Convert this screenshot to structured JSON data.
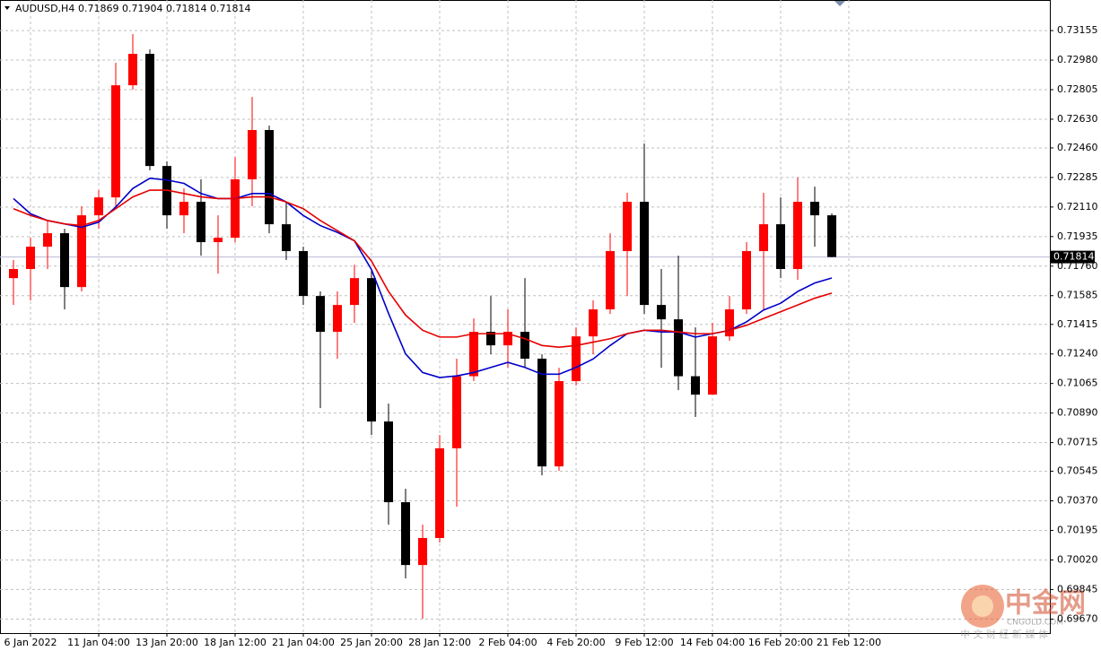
{
  "chart_data": {
    "type": "candlestick",
    "header": {
      "symbol": "AUDUSD,H4",
      "values": [
        0.71869,
        0.71904,
        0.71814,
        0.71814
      ]
    },
    "categories": [
      null,
      "6 Jan 2022",
      null,
      null,
      null,
      "11 Jan 04:00",
      null,
      null,
      null,
      "13 Jan 20:00",
      null,
      null,
      null,
      "18 Jan 12:00",
      null,
      null,
      null,
      "21 Jan 04:00",
      null,
      null,
      null,
      "25 Jan 20:00",
      null,
      null,
      null,
      "28 Jan 12:00",
      null,
      null,
      null,
      "2 Feb 04:00",
      null,
      null,
      null,
      "4 Feb 20:00",
      null,
      null,
      null,
      "9 Feb 12:00",
      null,
      null,
      null,
      "14 Feb 04:00",
      null,
      null,
      null,
      "16 Feb 20:00",
      null,
      null,
      null,
      "21 Feb 12:00"
    ],
    "open": [
      0.71689,
      0.71743,
      0.71875,
      0.71955,
      0.71636,
      0.72061,
      0.72167,
      0.72831,
      0.73017,
      0.72353,
      0.72061,
      0.72141,
      0.71902,
      0.71928,
      0.72274,
      0.72566,
      0.72008,
      0.71849,
      0.71583,
      0.71371,
      0.7153,
      0.71689,
      0.7084,
      0.70362,
      0.6999,
      0.7015,
      0.70681,
      0.71108,
      0.71371,
      0.71291,
      0.71371,
      0.71212,
      0.70574,
      0.71079,
      0.71344,
      0.71504,
      0.71849,
      0.72141,
      0.7153,
      0.71445,
      0.71108,
      0.70999,
      0.71344,
      0.71504,
      0.71849,
      0.72008,
      0.71743,
      0.72141,
      0.72061,
      null
    ],
    "high": [
      0.71796,
      0.71928,
      0.72035,
      0.71981,
      0.72114,
      0.7221,
      0.72964,
      0.73134,
      0.73043,
      0.7238,
      0.7222,
      0.72274,
      0.72061,
      0.72406,
      0.72762,
      0.72592,
      0.72141,
      0.71875,
      0.7161,
      0.7161,
      0.71769,
      0.71743,
      0.70946,
      0.70442,
      0.70229,
      0.7076,
      0.71212,
      0.7145,
      0.71583,
      0.71504,
      0.71689,
      0.71238,
      0.71158,
      0.71397,
      0.71557,
      0.71955,
      0.72194,
      0.72486,
      0.71743,
      0.71822,
      0.71397,
      0.71424,
      0.71583,
      0.71902,
      0.72194,
      0.72167,
      0.72284,
      0.72231,
      0.72072,
      null
    ],
    "low": [
      0.7153,
      0.71557,
      0.71743,
      0.71504,
      0.7161,
      0.71981,
      0.72114,
      0.72805,
      0.72327,
      0.71981,
      0.71955,
      0.71822,
      0.71716,
      0.71902,
      0.72114,
      0.71955,
      0.71796,
      0.7153,
      0.70919,
      0.71212,
      0.71424,
      0.7076,
      0.70229,
      0.69911,
      0.69672,
      0.70123,
      0.70335,
      0.71079,
      0.71238,
      0.71158,
      0.71158,
      0.70521,
      0.70548,
      0.71053,
      0.71238,
      0.71477,
      0.71583,
      0.71477,
      0.71158,
      0.71026,
      0.70867,
      0.70999,
      0.71318,
      0.71477,
      0.71504,
      0.71689,
      0.71679,
      0.71875,
      0.71812,
      null
    ],
    "close": [
      0.71743,
      0.71875,
      0.71955,
      0.71636,
      0.72061,
      0.72167,
      0.72831,
      0.73017,
      0.72353,
      0.72061,
      0.72141,
      0.71902,
      0.71928,
      0.72274,
      0.72566,
      0.72008,
      0.71849,
      0.71583,
      0.71371,
      0.7153,
      0.71689,
      0.7084,
      0.70362,
      0.6999,
      0.7015,
      0.70681,
      0.71108,
      0.71371,
      0.71291,
      0.71371,
      0.71212,
      0.70574,
      0.71079,
      0.71344,
      0.71504,
      0.71849,
      0.72141,
      0.7153,
      0.71445,
      0.71108,
      0.70999,
      0.71344,
      0.71504,
      0.71849,
      0.72008,
      0.71743,
      0.72141,
      0.72061,
      0.71814,
      null
    ],
    "up_color": "#ff0000",
    "down_color": "#000000",
    "ma_series": [
      {
        "color": "#0000c8",
        "values": [
          0.7216,
          0.7207,
          0.7203,
          0.7201,
          0.7199,
          0.7202,
          0.7211,
          0.7222,
          0.7228,
          0.7227,
          0.7225,
          0.7219,
          0.7216,
          0.7216,
          0.7219,
          0.7219,
          0.7214,
          0.7206,
          0.72,
          0.7196,
          0.7191,
          0.7174,
          0.7148,
          0.7124,
          0.7113,
          0.711,
          0.7111,
          0.7113,
          0.7116,
          0.7119,
          0.7116,
          0.7112,
          0.7112,
          0.7116,
          0.7121,
          0.7129,
          0.7136,
          0.7138,
          0.7137,
          0.7137,
          0.7134,
          0.7136,
          0.7138,
          0.7143,
          0.715,
          0.7154,
          0.7161,
          0.7166,
          0.7169,
          null
        ]
      },
      {
        "color": "#e60000",
        "values": [
          0.721,
          0.7206,
          0.7203,
          0.7201,
          0.72,
          0.7203,
          0.721,
          0.7217,
          0.7221,
          0.7221,
          0.7219,
          0.7217,
          0.7216,
          0.7216,
          0.7217,
          0.7217,
          0.7214,
          0.721,
          0.7203,
          0.7197,
          0.7191,
          0.7179,
          0.7161,
          0.7147,
          0.7138,
          0.7134,
          0.7134,
          0.7136,
          0.7136,
          0.7136,
          0.7133,
          0.7129,
          0.7128,
          0.7129,
          0.7131,
          0.7133,
          0.7136,
          0.7138,
          0.7138,
          0.7137,
          0.7136,
          0.7136,
          0.7138,
          0.7141,
          0.7145,
          0.7149,
          0.7153,
          0.7157,
          0.716,
          null
        ]
      }
    ],
    "last_price": 0.71814,
    "ylim": [
      0.69587,
      0.73336
    ],
    "yticks": [
      0.73155,
      {
        "value": 0.7298,
        "label": "0.72980"
      },
      0.72805,
      {
        "value": 0.7263,
        "label": "0.72630"
      },
      {
        "value": 0.7246,
        "label": "0.72460"
      },
      0.72285,
      {
        "value": 0.7211,
        "label": "0.72110"
      },
      0.71935,
      {
        "value": 0.7176,
        "label": "0.71760"
      },
      0.71585,
      0.71415,
      {
        "value": 0.7124,
        "label": "0.71240"
      },
      0.71065,
      {
        "value": 0.7089,
        "label": "0.70890"
      },
      0.70715,
      0.70545,
      {
        "value": 0.7037,
        "label": "0.70370"
      },
      0.70195,
      {
        "value": 0.7002,
        "label": "0.70020"
      },
      0.69845,
      {
        "value": 0.6967,
        "label": "0.69670"
      }
    ],
    "grid": true,
    "watermark": {
      "logo": "中金网",
      "site": "CNGOLD.COM",
      "slogan": "中 文 财 经 新 媒 体"
    }
  }
}
